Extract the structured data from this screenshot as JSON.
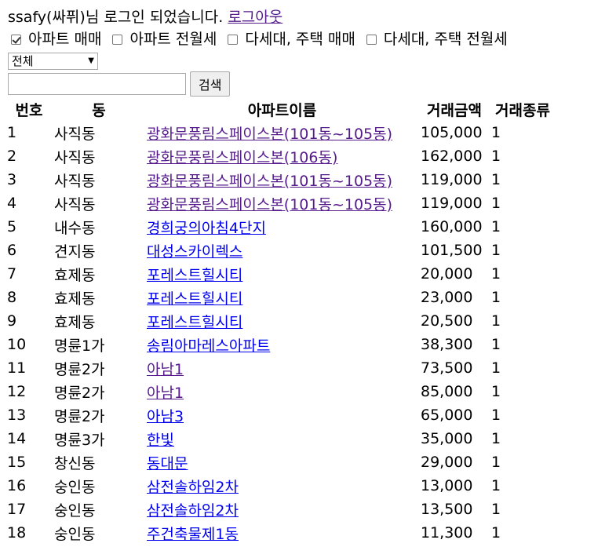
{
  "login": {
    "message": "ssafy(싸퓌)님 로그인 되었습니다.",
    "logout_label": "로그아웃"
  },
  "filters": [
    {
      "label": "아파트 매매",
      "checked": true
    },
    {
      "label": "아파트 전월세",
      "checked": false
    },
    {
      "label": "다세대, 주택 매매",
      "checked": false
    },
    {
      "label": "다세대, 주택 전월세",
      "checked": false
    }
  ],
  "search": {
    "select_value": "전체",
    "input_value": "",
    "button_label": "검색"
  },
  "table": {
    "headers": [
      "번호",
      "동",
      "아파트이름",
      "거래금액",
      "거래종류"
    ],
    "rows": [
      {
        "num": "1",
        "dong": "사직동",
        "name": "광화문풍림스페이스본(101동~105동)",
        "amount": "105,000",
        "type": "1",
        "visited": true
      },
      {
        "num": "2",
        "dong": "사직동",
        "name": "광화문풍림스페이스본(106동)",
        "amount": "162,000",
        "type": "1",
        "visited": true
      },
      {
        "num": "3",
        "dong": "사직동",
        "name": "광화문풍림스페이스본(101동~105동)",
        "amount": "119,000",
        "type": "1",
        "visited": true
      },
      {
        "num": "4",
        "dong": "사직동",
        "name": "광화문풍림스페이스본(101동~105동)",
        "amount": "119,000",
        "type": "1",
        "visited": true
      },
      {
        "num": "5",
        "dong": "내수동",
        "name": "경희궁의아침4단지",
        "amount": "160,000",
        "type": "1",
        "visited": false
      },
      {
        "num": "6",
        "dong": "견지동",
        "name": "대성스카이렉스",
        "amount": "101,500",
        "type": "1",
        "visited": false
      },
      {
        "num": "7",
        "dong": "효제동",
        "name": "포레스트힐시티",
        "amount": "20,000",
        "type": "1",
        "visited": false
      },
      {
        "num": "8",
        "dong": "효제동",
        "name": "포레스트힐시티",
        "amount": "23,000",
        "type": "1",
        "visited": false
      },
      {
        "num": "9",
        "dong": "효제동",
        "name": "포레스트힐시티",
        "amount": "20,500",
        "type": "1",
        "visited": false
      },
      {
        "num": "10",
        "dong": "명륜1가",
        "name": "송림아마레스아파트",
        "amount": "38,300",
        "type": "1",
        "visited": false
      },
      {
        "num": "11",
        "dong": "명륜2가",
        "name": "아남1",
        "amount": "73,500",
        "type": "1",
        "visited": true
      },
      {
        "num": "12",
        "dong": "명륜2가",
        "name": "아남1",
        "amount": "85,000",
        "type": "1",
        "visited": true
      },
      {
        "num": "13",
        "dong": "명륜2가",
        "name": "아남3",
        "amount": "65,000",
        "type": "1",
        "visited": false
      },
      {
        "num": "14",
        "dong": "명륜3가",
        "name": "한빛",
        "amount": "35,000",
        "type": "1",
        "visited": false
      },
      {
        "num": "15",
        "dong": "창신동",
        "name": "동대문",
        "amount": "29,000",
        "type": "1",
        "visited": false
      },
      {
        "num": "16",
        "dong": "숭인동",
        "name": "삼전솔하임2차",
        "amount": "13,000",
        "type": "1",
        "visited": false
      },
      {
        "num": "17",
        "dong": "숭인동",
        "name": "삼전솔하임2차",
        "amount": "13,500",
        "type": "1",
        "visited": false
      },
      {
        "num": "18",
        "dong": "숭인동",
        "name": "주건축물제1동",
        "amount": "11,300",
        "type": "1",
        "visited": false
      }
    ]
  }
}
